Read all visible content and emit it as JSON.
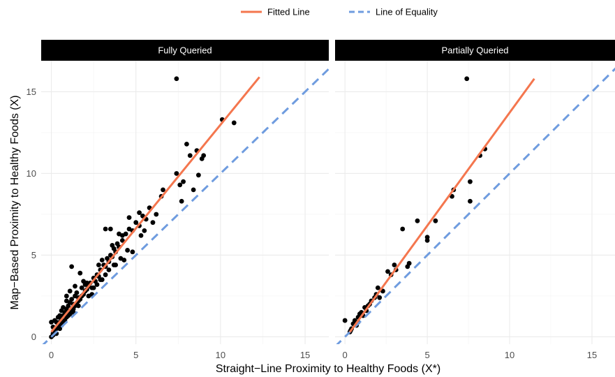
{
  "chart_data": {
    "type": "scatter",
    "xlabel": "Straight−Line Proximity to Healthy Foods (X*)",
    "ylabel": "Map−Based Proximity to Healthy Foods (X)",
    "xlim": [
      -0.6,
      16.4
    ],
    "ylim": [
      -0.45,
      16.9
    ],
    "x_ticks": [
      0,
      5,
      10,
      15
    ],
    "y_ticks": [
      0,
      5,
      10,
      15
    ],
    "grid": true,
    "legend_position": "top",
    "legend": [
      {
        "name": "Fitted Line",
        "color": "#f4764e",
        "style": "solid"
      },
      {
        "name": "Line of Equality",
        "color": "#6f9cdf",
        "style": "dashed"
      }
    ],
    "colors": {
      "points": "#000000",
      "fitted": "#f4764e",
      "equality": "#6f9cdf",
      "strip_bg": "#000000",
      "strip_text": "#ffffff",
      "grid": "#ebebeb"
    },
    "panels": [
      {
        "title": "Fully Queried",
        "fitted_line": {
          "x": [
            0,
            12.3
          ],
          "y": [
            0.3,
            15.9
          ]
        },
        "points": [
          [
            0.1,
            0.1
          ],
          [
            0.1,
            0.2
          ],
          [
            0.2,
            0.3
          ],
          [
            0.2,
            0.4
          ],
          [
            0.3,
            0.2
          ],
          [
            0.3,
            0.5
          ],
          [
            0.4,
            0.6
          ],
          [
            0.4,
            0.8
          ],
          [
            0.5,
            0.5
          ],
          [
            0.5,
            0.9
          ],
          [
            0.6,
            0.7
          ],
          [
            0.6,
            1.1
          ],
          [
            0.7,
            0.9
          ],
          [
            0.7,
            1.3
          ],
          [
            0.8,
            1.0
          ],
          [
            0.8,
            1.5
          ],
          [
            0.9,
            1.2
          ],
          [
            0.9,
            1.7
          ],
          [
            1.0,
            1.3
          ],
          [
            1.0,
            1.9
          ],
          [
            1.1,
            1.4
          ],
          [
            1.1,
            2.1
          ],
          [
            1.2,
            1.6
          ],
          [
            1.2,
            2.3
          ],
          [
            1.3,
            1.7
          ],
          [
            1.3,
            2.0
          ],
          [
            1.4,
            1.9
          ],
          [
            1.4,
            2.5
          ],
          [
            1.5,
            2.0
          ],
          [
            1.5,
            2.7
          ],
          [
            1.6,
            2.2
          ],
          [
            1.6,
            2.4
          ],
          [
            1.7,
            2.3
          ],
          [
            1.8,
            2.5
          ],
          [
            1.8,
            3.0
          ],
          [
            1.9,
            2.6
          ],
          [
            2.0,
            2.8
          ],
          [
            2.0,
            3.2
          ],
          [
            2.1,
            2.9
          ],
          [
            2.2,
            3.1
          ],
          [
            2.3,
            3.3
          ],
          [
            2.4,
            3.0
          ],
          [
            2.5,
            3.6
          ],
          [
            2.6,
            3.4
          ],
          [
            2.7,
            3.8
          ],
          [
            2.8,
            3.7
          ],
          [
            2.9,
            4.1
          ],
          [
            3.0,
            3.5
          ],
          [
            3.1,
            4.4
          ],
          [
            3.2,
            4.3
          ],
          [
            3.3,
            4.8
          ],
          [
            3.4,
            4.6
          ],
          [
            3.5,
            5.0
          ],
          [
            3.6,
            4.9
          ],
          [
            3.7,
            5.4
          ],
          [
            3.8,
            5.2
          ],
          [
            3.9,
            5.7
          ],
          [
            4.0,
            5.5
          ],
          [
            4.2,
            6.2
          ],
          [
            4.4,
            6.3
          ],
          [
            4.6,
            6.6
          ],
          [
            4.8,
            6.5
          ],
          [
            5.0,
            7.0
          ],
          [
            5.2,
            6.8
          ],
          [
            5.4,
            7.4
          ],
          [
            5.6,
            7.2
          ],
          [
            0.0,
            0.0
          ],
          [
            0.0,
            0.9
          ],
          [
            0.2,
            1.0
          ],
          [
            0.4,
            1.2
          ],
          [
            0.6,
            1.6
          ],
          [
            0.9,
            2.2
          ],
          [
            1.2,
            4.3
          ],
          [
            1.3,
            1.5
          ],
          [
            1.7,
            3.9
          ],
          [
            2.1,
            3.3
          ],
          [
            2.4,
            2.6
          ],
          [
            2.7,
            3.2
          ],
          [
            2.8,
            4.4
          ],
          [
            3.2,
            3.8
          ],
          [
            3.2,
            6.6
          ],
          [
            3.5,
            6.6
          ],
          [
            3.7,
            4.4
          ],
          [
            3.8,
            4.4
          ],
          [
            4.0,
            6.3
          ],
          [
            4.2,
            5.9
          ],
          [
            4.3,
            4.7
          ],
          [
            4.5,
            5.3
          ],
          [
            4.6,
            7.3
          ],
          [
            4.8,
            5.2
          ],
          [
            5.2,
            7.6
          ],
          [
            5.3,
            6.2
          ],
          [
            5.5,
            6.5
          ],
          [
            5.8,
            7.9
          ],
          [
            6.0,
            7.0
          ],
          [
            6.2,
            7.5
          ],
          [
            6.5,
            8.6
          ],
          [
            6.6,
            9.0
          ],
          [
            7.4,
            10.0
          ],
          [
            7.6,
            9.3
          ],
          [
            7.7,
            8.3
          ],
          [
            7.8,
            9.5
          ],
          [
            8.4,
            9.0
          ],
          [
            8.0,
            11.8
          ],
          [
            8.2,
            11.1
          ],
          [
            8.6,
            11.4
          ],
          [
            8.7,
            9.9
          ],
          [
            8.9,
            10.9
          ],
          [
            9.0,
            11.1
          ],
          [
            10.1,
            13.3
          ],
          [
            10.8,
            13.1
          ],
          [
            7.4,
            15.8
          ],
          [
            0.1,
            0.6
          ],
          [
            0.3,
            0.9
          ],
          [
            0.5,
            1.3
          ],
          [
            0.7,
            1.8
          ],
          [
            0.9,
            2.5
          ],
          [
            1.1,
            2.8
          ],
          [
            1.4,
            3.1
          ],
          [
            1.6,
            1.9
          ],
          [
            1.9,
            3.4
          ],
          [
            2.2,
            2.5
          ],
          [
            2.5,
            3.0
          ],
          [
            2.9,
            3.5
          ],
          [
            3.0,
            4.7
          ],
          [
            3.4,
            4.1
          ],
          [
            3.6,
            5.6
          ],
          [
            4.1,
            4.8
          ]
        ]
      },
      {
        "title": "Partially Queried",
        "fitted_line": {
          "x": [
            0.3,
            11.5
          ],
          "y": [
            0.3,
            15.8
          ]
        },
        "points": [
          [
            0.0,
            1.0
          ],
          [
            0.3,
            0.3
          ],
          [
            0.4,
            0.5
          ],
          [
            0.5,
            0.8
          ],
          [
            0.6,
            1.0
          ],
          [
            0.7,
            0.7
          ],
          [
            0.8,
            1.2
          ],
          [
            0.9,
            1.4
          ],
          [
            1.0,
            1.5
          ],
          [
            1.1,
            1.3
          ],
          [
            1.2,
            1.8
          ],
          [
            1.3,
            1.6
          ],
          [
            1.5,
            2.0
          ],
          [
            1.6,
            2.2
          ],
          [
            1.8,
            2.4
          ],
          [
            1.9,
            2.6
          ],
          [
            2.0,
            3.0
          ],
          [
            2.1,
            2.4
          ],
          [
            2.3,
            2.8
          ],
          [
            2.6,
            4.0
          ],
          [
            2.8,
            3.8
          ],
          [
            3.0,
            4.4
          ],
          [
            3.1,
            4.1
          ],
          [
            3.5,
            6.6
          ],
          [
            3.8,
            4.3
          ],
          [
            3.9,
            4.5
          ],
          [
            4.4,
            7.1
          ],
          [
            5.0,
            5.9
          ],
          [
            5.0,
            6.1
          ],
          [
            5.5,
            7.1
          ],
          [
            6.5,
            8.6
          ],
          [
            6.6,
            9.0
          ],
          [
            7.6,
            9.5
          ],
          [
            7.6,
            8.3
          ],
          [
            8.2,
            11.1
          ],
          [
            8.5,
            11.5
          ],
          [
            7.4,
            15.8
          ],
          [
            0.35,
            0.4
          ],
          [
            0.8,
            0.9
          ],
          [
            1.4,
            1.9
          ]
        ]
      }
    ]
  }
}
